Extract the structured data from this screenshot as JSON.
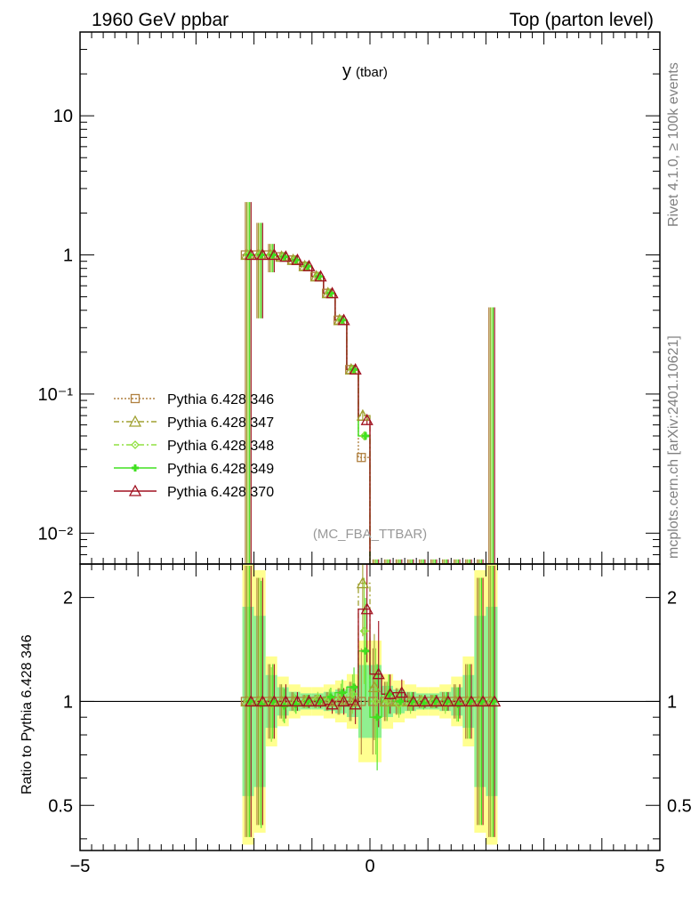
{
  "header": {
    "left": "1960 GeV ppbar",
    "right": "Top (parton level)"
  },
  "side_labels": {
    "rivet": "Rivet 4.1.0, ≥ 100k events",
    "mcplots": "mcplots.cern.ch [arXiv:2401.10621]"
  },
  "colors": {
    "346": "#b08040",
    "347": "#a0a030",
    "348": "#90e040",
    "349": "#40e020",
    "370": "#a01020",
    "band_yellow": "#ffff90",
    "band_green": "#90f090"
  },
  "chart_data": [
    {
      "type": "line",
      "title_main": "y",
      "title_sub": "(tbar)",
      "annotation": "(MC_FBA_TTBAR)",
      "yscale": "log",
      "xlim": [
        -5,
        5
      ],
      "ylim": [
        0.006,
        40
      ],
      "y_ticks": [
        {
          "value": 10,
          "label": "10"
        },
        {
          "value": 1,
          "label": "1"
        },
        {
          "value": 0.1,
          "label": "10⁻¹"
        },
        {
          "value": 0.01,
          "label": "10⁻²"
        }
      ],
      "legend_position": "left",
      "x": [
        -2.1,
        -1.9,
        -1.7,
        -1.5,
        -1.3,
        -1.1,
        -0.9,
        -0.7,
        -0.5,
        -0.3,
        -0.1,
        0.1,
        0.3,
        0.5,
        0.7,
        0.9,
        1.1,
        1.3,
        1.5,
        1.7,
        1.9,
        2.1
      ],
      "series": [
        {
          "name": "Pythia 6.428 346",
          "style": "dotted",
          "marker": "square",
          "values": [
            1.0,
            1.0,
            1.0,
            0.97,
            0.92,
            0.83,
            0.7,
            0.53,
            0.34,
            0.15,
            0.035,
            0.006,
            0.006,
            0.006,
            0.006,
            0.006,
            0.006,
            0.006,
            0.006,
            0.006,
            0.006,
            0.006
          ]
        },
        {
          "name": "Pythia 6.428 347",
          "style": "dashdot",
          "marker": "triangle",
          "values": [
            1.0,
            1.0,
            1.0,
            0.97,
            0.92,
            0.83,
            0.7,
            0.53,
            0.34,
            0.15,
            0.07,
            0.006,
            0.006,
            0.006,
            0.006,
            0.006,
            0.006,
            0.006,
            0.006,
            0.006,
            0.006,
            0.006
          ]
        },
        {
          "name": "Pythia 6.428 348",
          "style": "dashdot",
          "marker": "diamond",
          "values": [
            1.0,
            1.0,
            1.0,
            0.97,
            0.92,
            0.83,
            0.7,
            0.53,
            0.34,
            0.15,
            0.05,
            0.006,
            0.006,
            0.006,
            0.006,
            0.006,
            0.006,
            0.006,
            0.006,
            0.006,
            0.006,
            0.006
          ]
        },
        {
          "name": "Pythia 6.428 349",
          "style": "solid",
          "marker": "cross",
          "values": [
            1.0,
            1.0,
            1.0,
            0.97,
            0.92,
            0.83,
            0.7,
            0.53,
            0.34,
            0.15,
            0.05,
            0.006,
            0.006,
            0.006,
            0.006,
            0.006,
            0.006,
            0.006,
            0.006,
            0.006,
            0.006,
            0.006
          ]
        },
        {
          "name": "Pythia 6.428 370",
          "style": "solid",
          "marker": "triangle",
          "values": [
            1.0,
            1.0,
            1.0,
            0.97,
            0.92,
            0.83,
            0.7,
            0.53,
            0.34,
            0.15,
            0.065,
            0.006,
            0.006,
            0.006,
            0.006,
            0.006,
            0.006,
            0.006,
            0.006,
            0.006,
            0.006,
            0.006
          ]
        }
      ]
    },
    {
      "type": "line",
      "ylabel": "Ratio to Pythia 6.428 346",
      "yscale": "log",
      "xlim": [
        -5,
        5
      ],
      "ylim": [
        0.37,
        2.5
      ],
      "y_ticks": [
        {
          "value": 2,
          "label": "2"
        },
        {
          "value": 1,
          "label": "1"
        },
        {
          "value": 0.5,
          "label": "0.5"
        }
      ],
      "x_ticks": [
        {
          "value": -5,
          "label": "−5"
        },
        {
          "value": 0,
          "label": "0"
        },
        {
          "value": 5,
          "label": "5"
        }
      ],
      "x": [
        -2.1,
        -1.9,
        -1.7,
        -1.5,
        -1.3,
        -1.1,
        -0.9,
        -0.7,
        -0.5,
        -0.3,
        -0.1,
        0.1,
        0.3,
        0.5,
        0.7,
        0.9,
        1.1,
        1.3,
        1.5,
        1.7,
        1.9,
        2.1
      ],
      "series": [
        {
          "name": "Pythia 6.428 346",
          "values": [
            1,
            1,
            1,
            1,
            1,
            1,
            1,
            1,
            1,
            1,
            1,
            1,
            1,
            1,
            1,
            1,
            1,
            1,
            1,
            1,
            1,
            1
          ]
        },
        {
          "name": "Pythia 6.428 347",
          "values": [
            1.0,
            1.0,
            1.0,
            1.0,
            1.0,
            1.0,
            1.0,
            1.0,
            1.0,
            1.0,
            2.2,
            1.1,
            1.0,
            1.0,
            1.0,
            1.0,
            1.0,
            1.0,
            1.0,
            1.0,
            1.0,
            1.0
          ]
        },
        {
          "name": "Pythia 6.428 348",
          "values": [
            1.0,
            1.0,
            0.98,
            0.98,
            0.99,
            1.0,
            1.02,
            1.02,
            1.03,
            1.05,
            1.6,
            1.0,
            1.0,
            0.98,
            0.98,
            1.0,
            1.0,
            0.98,
            0.98,
            1.0,
            1.0,
            1.0
          ]
        },
        {
          "name": "Pythia 6.428 349",
          "values": [
            1.0,
            0.98,
            1.0,
            0.97,
            0.98,
            1.0,
            1.0,
            1.03,
            1.06,
            1.1,
            1.4,
            0.9,
            1.05,
            1.0,
            1.0,
            0.99,
            1.0,
            1.0,
            0.98,
            1.0,
            1.0,
            1.0
          ]
        },
        {
          "name": "Pythia 6.428 370",
          "values": [
            1.0,
            1.0,
            1.0,
            1.0,
            1.0,
            1.0,
            1.0,
            0.98,
            1.0,
            0.98,
            1.85,
            1.2,
            1.05,
            1.06,
            1.0,
            1.0,
            1.0,
            1.0,
            1.0,
            1.0,
            1.0,
            1.0
          ]
        }
      ]
    }
  ]
}
